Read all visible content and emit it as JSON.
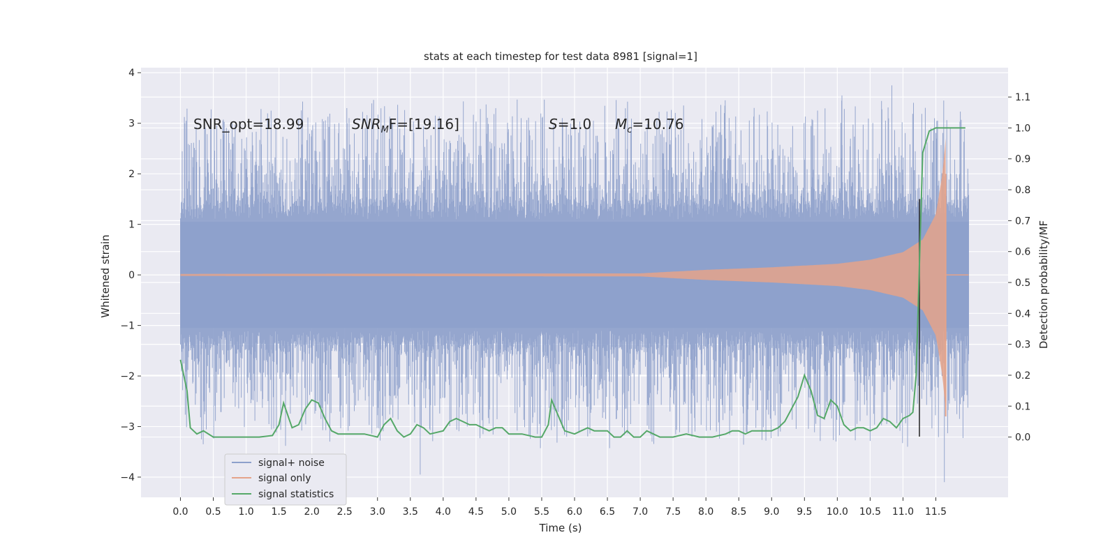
{
  "chart_data": {
    "type": "line",
    "title": "stats at each timestep for test data 8981 [signal=1]",
    "xlabel": "Time (s)",
    "ylabel_left": "Whitened strain",
    "ylabel_right": "Detection probability/MF",
    "xlim": [
      -0.6,
      12.6
    ],
    "ylim_left": [
      -4.4,
      4.1
    ],
    "ylim_right": [
      -0.195,
      1.195
    ],
    "x_ticks": [
      "0.0",
      "0.5",
      "1.0",
      "1.5",
      "2.0",
      "2.5",
      "3.0",
      "3.5",
      "4.0",
      "4.5",
      "5.0",
      "5.5",
      "6.0",
      "6.5",
      "7.0",
      "7.5",
      "8.0",
      "8.5",
      "9.0",
      "9.5",
      "10.0",
      "10.5",
      "11.0",
      "11.5"
    ],
    "y_left_ticks": [
      "4",
      "3",
      "2",
      "1",
      "0",
      "−1",
      "−2",
      "−3",
      "−4"
    ],
    "y_right_ticks": [
      "1.1",
      "1.0",
      "0.9",
      "0.8",
      "0.7",
      "0.6",
      "0.5",
      "0.4",
      "0.3",
      "0.2",
      "0.1",
      "0.0"
    ],
    "grid": true,
    "legend_position": "lower-left",
    "annotations": {
      "snr_opt": "SNR_opt=18.99",
      "snr_mf_main": "SNR",
      "snr_mf_sub": "M",
      "snr_mf_rest": "F=[19.16]",
      "s_main": "S",
      "s_rest": "=1.0",
      "mc_main": "M",
      "mc_sub": "c",
      "mc_rest": "=10.76"
    },
    "marker_x": 11.25,
    "colors": {
      "noise": "#8da0cb",
      "signal": "#e5a38a",
      "stats": "#55a868",
      "background": "#eaeaf2",
      "grid": "#ffffff",
      "marker": "#222222"
    },
    "series": [
      {
        "name": "signal+ noise",
        "axis": "left",
        "description_range": [
          0.0,
          12.0
        ],
        "typical_envelope": 1.1,
        "max_values": [
          {
            "x": 10.07,
            "y": 3.55
          },
          {
            "x": 10.83,
            "y": 3.75
          },
          {
            "x": 11.62,
            "y": 3.45
          },
          {
            "x": 1.38,
            "y": 3.25
          }
        ],
        "min_values": [
          {
            "x": 3.65,
            "y": -3.95
          },
          {
            "x": 11.63,
            "y": -4.1
          },
          {
            "x": 11.07,
            "y": -3.4
          }
        ]
      },
      {
        "name": "signal only",
        "axis": "left",
        "envelope": [
          {
            "x": 0.0,
            "y": 0.02
          },
          {
            "x": 7.0,
            "y": 0.03
          },
          {
            "x": 8.0,
            "y": 0.1
          },
          {
            "x": 9.0,
            "y": 0.15
          },
          {
            "x": 10.0,
            "y": 0.22
          },
          {
            "x": 10.5,
            "y": 0.3
          },
          {
            "x": 11.0,
            "y": 0.45
          },
          {
            "x": 11.3,
            "y": 0.7
          },
          {
            "x": 11.5,
            "y": 1.2
          },
          {
            "x": 11.6,
            "y": 2.0
          },
          {
            "x": 11.65,
            "y": 2.7
          }
        ]
      },
      {
        "name": "signal statistics",
        "axis": "right",
        "x": [
          0.0,
          0.1,
          0.15,
          0.25,
          0.35,
          0.5,
          0.6,
          0.8,
          1.0,
          1.2,
          1.4,
          1.5,
          1.57,
          1.7,
          1.8,
          1.9,
          2.0,
          2.1,
          2.2,
          2.3,
          2.4,
          2.6,
          2.8,
          3.0,
          3.1,
          3.2,
          3.3,
          3.4,
          3.5,
          3.6,
          3.7,
          3.8,
          4.0,
          4.1,
          4.2,
          4.3,
          4.4,
          4.5,
          4.6,
          4.7,
          4.8,
          4.9,
          5.0,
          5.2,
          5.4,
          5.5,
          5.6,
          5.65,
          5.75,
          5.85,
          6.0,
          6.1,
          6.2,
          6.3,
          6.4,
          6.5,
          6.6,
          6.7,
          6.8,
          6.9,
          7.0,
          7.1,
          7.2,
          7.3,
          7.5,
          7.7,
          7.9,
          8.1,
          8.3,
          8.4,
          8.5,
          8.6,
          8.7,
          8.8,
          9.0,
          9.1,
          9.2,
          9.3,
          9.4,
          9.5,
          9.6,
          9.7,
          9.8,
          9.9,
          10.0,
          10.1,
          10.2,
          10.3,
          10.4,
          10.5,
          10.6,
          10.7,
          10.8,
          10.9,
          11.0,
          11.1,
          11.15,
          11.2,
          11.3,
          11.4,
          11.5,
          11.6,
          11.7,
          11.8,
          11.9,
          11.95
        ],
        "y": [
          0.25,
          0.15,
          0.03,
          0.01,
          0.02,
          0.0,
          0.0,
          0.0,
          0.0,
          0.0,
          0.005,
          0.04,
          0.11,
          0.03,
          0.04,
          0.09,
          0.12,
          0.11,
          0.06,
          0.02,
          0.01,
          0.01,
          0.01,
          0.0,
          0.04,
          0.06,
          0.02,
          0.0,
          0.01,
          0.04,
          0.03,
          0.01,
          0.02,
          0.05,
          0.06,
          0.05,
          0.04,
          0.04,
          0.03,
          0.02,
          0.03,
          0.03,
          0.01,
          0.01,
          0.0,
          0.0,
          0.04,
          0.12,
          0.07,
          0.02,
          0.01,
          0.02,
          0.03,
          0.02,
          0.02,
          0.02,
          0.0,
          0.0,
          0.02,
          0.0,
          0.0,
          0.02,
          0.01,
          0.0,
          0.0,
          0.01,
          0.0,
          0.0,
          0.01,
          0.02,
          0.02,
          0.01,
          0.02,
          0.02,
          0.02,
          0.03,
          0.05,
          0.09,
          0.13,
          0.2,
          0.15,
          0.07,
          0.06,
          0.12,
          0.1,
          0.04,
          0.02,
          0.03,
          0.03,
          0.02,
          0.03,
          0.06,
          0.05,
          0.03,
          0.06,
          0.07,
          0.08,
          0.2,
          0.92,
          0.99,
          1.0,
          1.0,
          1.0,
          1.0,
          1.0,
          1.0
        ]
      }
    ]
  }
}
